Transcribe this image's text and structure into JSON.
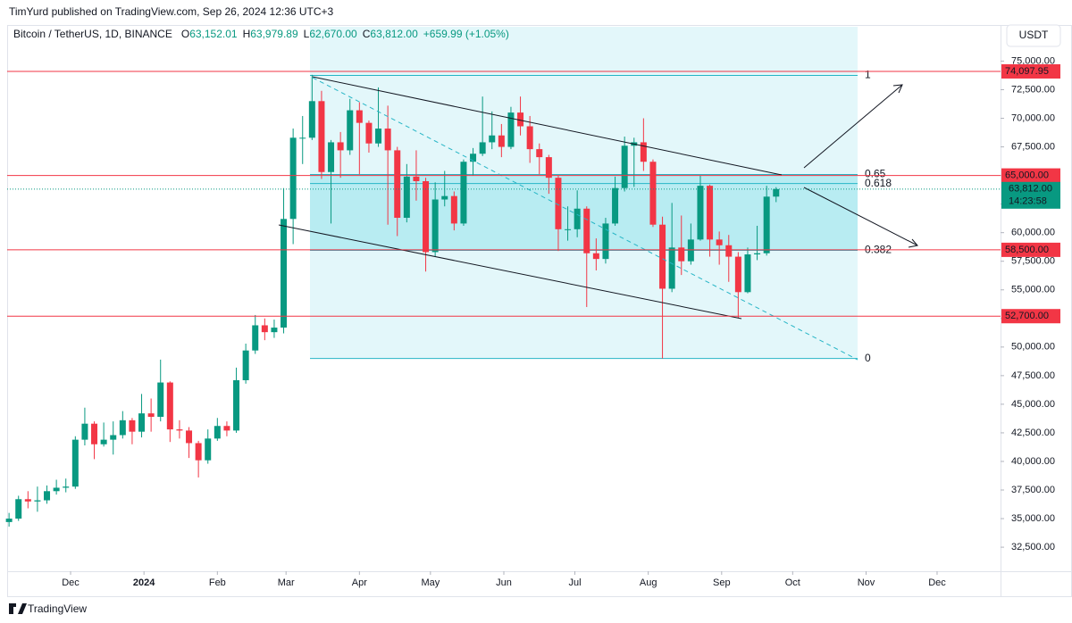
{
  "chart_data": {
    "type": "candlestick",
    "publisher": "TimYurd published on TradingView.com, Sep 26, 2024 12:36 UTC+3",
    "title": "Bitcoin / TetherUS, 1D, BINANCE",
    "ohlc_header": [
      {
        "key": "O",
        "value": "63,152.01"
      },
      {
        "key": "H",
        "value": "63,979.89"
      },
      {
        "key": "L",
        "value": "62,670.00"
      },
      {
        "key": "C",
        "value": "63,812.00"
      }
    ],
    "change": "+659.99 (+1.05%)",
    "currency": "USDT",
    "brand": "TradingView",
    "up_color": "#089981",
    "down_color": "#f23645",
    "categories": [
      null,
      null,
      null,
      null,
      null,
      null,
      null,
      null,
      null,
      null,
      null,
      null,
      null,
      null,
      null,
      null,
      null,
      null,
      null,
      null,
      null,
      null,
      null,
      null,
      null,
      null,
      null,
      null,
      null,
      null,
      null,
      null,
      null,
      null,
      null,
      null,
      null,
      null,
      null,
      null,
      null,
      null,
      null,
      null,
      null,
      null,
      null,
      null,
      null,
      null,
      null,
      null,
      null,
      null,
      null,
      null,
      null,
      null,
      null,
      null,
      null,
      null,
      null,
      null,
      null,
      null,
      null,
      null,
      null,
      null,
      null,
      null,
      null,
      null,
      null,
      null,
      null,
      null,
      null,
      null,
      null,
      null
    ],
    "open": [
      34700,
      35000,
      36700,
      36500,
      36600,
      37400,
      37700,
      37800,
      41900,
      43300,
      41500,
      41900,
      42300,
      43600,
      42600,
      44200,
      43900,
      46900,
      42800,
      42700,
      41600,
      40100,
      42000,
      43100,
      42700,
      47100,
      49700,
      51900,
      51300,
      51700,
      61200,
      68300,
      68300,
      71500,
      65300,
      67900,
      67200,
      70700,
      69600,
      67800,
      69100,
      67200,
      61300,
      64900,
      64500,
      58300,
      62900,
      63200,
      60800,
      66200,
      66900,
      67900,
      68500,
      67500,
      70500,
      69300,
      67300,
      66600,
      64800,
      60300,
      60300,
      62100,
      58200,
      57700,
      60800,
      63900,
      67600,
      67900,
      66200,
      60700,
      55100,
      58700,
      57500,
      59400,
      64100,
      59400,
      58900,
      57900,
      54800,
      58100,
      58200,
      63152.01
    ],
    "high": [
      35500,
      37000,
      37400,
      37800,
      37900,
      38400,
      38500,
      42200,
      44700,
      43500,
      43400,
      43500,
      44400,
      43800,
      45900,
      45500,
      48900,
      47000,
      43600,
      43000,
      41800,
      42800,
      43800,
      43500,
      48200,
      50300,
      52800,
      52500,
      52400,
      63900,
      69100,
      70200,
      73800,
      72400,
      68100,
      68800,
      71700,
      71400,
      69800,
      72700,
      71100,
      67500,
      66000,
      67200,
      64800,
      64400,
      65400,
      63600,
      66400,
      67400,
      71900,
      70600,
      69500,
      71000,
      71900,
      70200,
      67800,
      66800,
      65000,
      62300,
      63700,
      62300,
      59500,
      61300,
      64900,
      68400,
      68300,
      70000,
      66400,
      61400,
      62600,
      61500,
      60800,
      65000,
      64200,
      60100,
      59800,
      58300,
      58700,
      60600,
      64100,
      63979.89
    ],
    "low": [
      34300,
      34800,
      35900,
      35600,
      36300,
      37100,
      37300,
      37600,
      41400,
      40200,
      41300,
      40600,
      42000,
      41500,
      42100,
      42600,
      43500,
      41700,
      42000,
      40300,
      38600,
      39800,
      41800,
      42200,
      42500,
      46800,
      49400,
      50600,
      50800,
      51200,
      59000,
      66000,
      68100,
      64700,
      60800,
      64800,
      66800,
      65100,
      67000,
      67500,
      60700,
      59700,
      60900,
      62800,
      56600,
      57900,
      62300,
      60200,
      60600,
      65000,
      66700,
      67300,
      66600,
      67300,
      68500,
      66100,
      65100,
      63400,
      58400,
      59300,
      59600,
      53500,
      56700,
      57300,
      60600,
      63600,
      64000,
      65400,
      60500,
      49000,
      54800,
      56300,
      57200,
      59300,
      57900,
      57200,
      55700,
      52550,
      54700,
      57600,
      58000,
      62670
    ],
    "close": [
      35000,
      36700,
      36500,
      36600,
      37400,
      37700,
      37800,
      41900,
      43300,
      41500,
      41900,
      42300,
      43600,
      42600,
      44200,
      43900,
      46900,
      42800,
      42700,
      41600,
      40100,
      42000,
      43100,
      42700,
      47100,
      49700,
      51900,
      51300,
      51700,
      61200,
      68300,
      68300,
      71500,
      65300,
      67900,
      67200,
      70700,
      69600,
      67800,
      69100,
      67200,
      61300,
      64900,
      64500,
      58300,
      62900,
      63200,
      60800,
      66200,
      66900,
      67900,
      68500,
      67500,
      70500,
      69300,
      67300,
      66600,
      64800,
      60300,
      60300,
      62100,
      58200,
      57700,
      60800,
      63900,
      67600,
      67900,
      66200,
      60700,
      55100,
      58700,
      57500,
      59400,
      64100,
      59400,
      58900,
      57900,
      54800,
      58100,
      58200,
      63150,
      63812
    ],
    "xlim": [
      -0.2,
      104.7
    ],
    "xticks": [
      {
        "value": 6.5,
        "label": "Dec"
      },
      {
        "value": 14.25,
        "label": "2024"
      },
      {
        "value": 22,
        "label": "Feb"
      },
      {
        "value": 29.25,
        "label": "Mar"
      },
      {
        "value": 37,
        "label": "Apr"
      },
      {
        "value": 44.5,
        "label": "May"
      },
      {
        "value": 52.25,
        "label": "Jun"
      },
      {
        "value": 59.75,
        "label": "Jul"
      },
      {
        "value": 67.5,
        "label": "Aug"
      },
      {
        "value": 75.25,
        "label": "Sep"
      },
      {
        "value": 82.75,
        "label": "Oct"
      },
      {
        "value": 90.5,
        "label": "Nov"
      },
      {
        "value": 98,
        "label": "Dec"
      }
    ],
    "ylim": [
      30400,
      78000
    ],
    "yticks": [
      {
        "value": 32500,
        "label": "32,500.00"
      },
      {
        "value": 35000,
        "label": "35,000.00"
      },
      {
        "value": 37500,
        "label": "37,500.00"
      },
      {
        "value": 40000,
        "label": "40,000.00"
      },
      {
        "value": 42500,
        "label": "42,500.00"
      },
      {
        "value": 45000,
        "label": "45,000.00"
      },
      {
        "value": 47500,
        "label": "47,500.00"
      },
      {
        "value": 50000,
        "label": "50,000.00"
      },
      {
        "value": 52500,
        "label": "52,500.00"
      },
      {
        "value": 55000,
        "label": "55,000.00"
      },
      {
        "value": 57500,
        "label": "57,500.00"
      },
      {
        "value": 60000,
        "label": "60,000.00"
      },
      {
        "value": 62500,
        "label": "62,500.00"
      },
      {
        "value": 65000,
        "label": "65,000.00"
      },
      {
        "value": 67500,
        "label": "67,500.00"
      },
      {
        "value": 70000,
        "label": "70,000.00"
      },
      {
        "value": 72500,
        "label": "72,500.00"
      },
      {
        "value": 75000,
        "label": "75,000.00"
      }
    ],
    "grid": false,
    "hlines": [
      {
        "value": 74097.95,
        "label": "74,097.95"
      },
      {
        "value": 65000,
        "label": "65,000.00"
      },
      {
        "value": 58500,
        "label": "58,500.00"
      },
      {
        "value": 52700,
        "label": "52,700.00"
      }
    ],
    "hline_color": "#f23645",
    "last_price": {
      "value": 63812,
      "label": "63,812.00"
    },
    "countdown": "14:23:58",
    "fib": {
      "levels": [
        1,
        0.65,
        0.618,
        0.382,
        0
      ],
      "low": 49000,
      "high": 73750,
      "color": "#26b5c6"
    }
  }
}
